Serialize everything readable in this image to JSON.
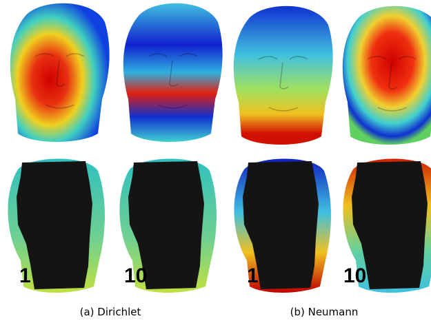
{
  "figure": {
    "panels": [
      {
        "caption": "(a) Dirichlet",
        "labels": [
          "1",
          "10"
        ]
      },
      {
        "caption": "(b) Neumann",
        "labels": [
          "1",
          "10"
        ]
      }
    ]
  }
}
